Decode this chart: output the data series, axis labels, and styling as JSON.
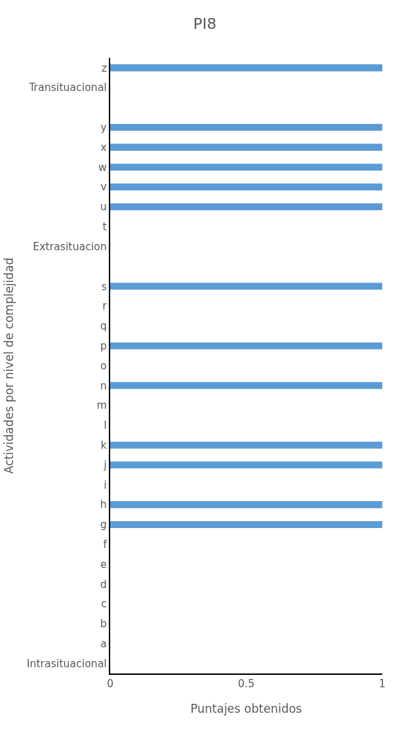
{
  "chart_data": {
    "type": "bar",
    "orientation": "horizontal",
    "title": "PI8",
    "xlabel": "Puntajes obtenidos",
    "ylabel": "Actividades por nivel de complejidad",
    "categories": [
      "z",
      "Transituacional",
      null,
      "y",
      "x",
      "w",
      "v",
      "u",
      "t",
      "Extrasituacion",
      null,
      "s",
      "r",
      "q",
      "p",
      "o",
      "n",
      "m",
      "l",
      "k",
      "j",
      "i",
      "h",
      "g",
      "f",
      "e",
      "d",
      "c",
      "b",
      "a",
      "Intrasituacional"
    ],
    "values": [
      1,
      0,
      null,
      1,
      1,
      1,
      1,
      1,
      0,
      0,
      null,
      1,
      0,
      0,
      1,
      0,
      1,
      0,
      0,
      1,
      1,
      0,
      1,
      1,
      0,
      0,
      0,
      0,
      0,
      0,
      0
    ],
    "color": "#5b9bd5",
    "xlim": [
      0,
      1
    ],
    "xticks": [
      0,
      0.5,
      1
    ]
  }
}
